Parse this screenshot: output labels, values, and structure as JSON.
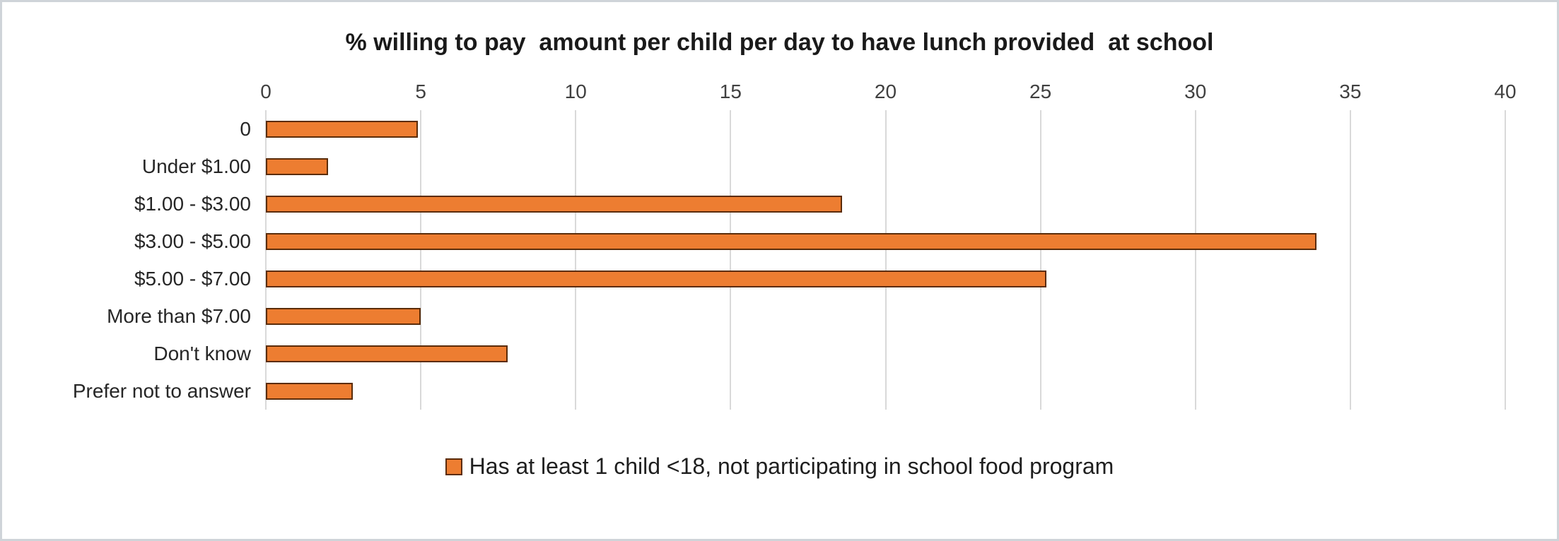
{
  "chart_data": {
    "type": "bar",
    "orientation": "horizontal",
    "title": "% willing to pay  amount per child per day to have lunch provided  at school",
    "categories": [
      "0",
      "Under $1.00",
      "$1.00 - $3.00",
      "$3.00 - $5.00",
      "$5.00 - $7.00",
      "More than $7.00",
      "Don't know",
      "Prefer not to answer"
    ],
    "values": [
      4.9,
      2,
      18.6,
      33.9,
      25.2,
      5,
      7.8,
      2.8
    ],
    "xlabel": "",
    "ylabel": "",
    "xlim": [
      0,
      40
    ],
    "xticks": [
      0,
      5,
      10,
      15,
      20,
      25,
      30,
      35,
      40
    ],
    "grid": "vertical",
    "axis_position": "top",
    "legend_position": "bottom",
    "bar_fill": "#ED7D31",
    "bar_border": "#5B2C09",
    "gridline_color": "#d9d9d9",
    "legend": [
      {
        "label": "Has at least 1 child <18, not participating in school food program",
        "color": "#ED7D31",
        "border": "#5B2C09"
      }
    ]
  }
}
